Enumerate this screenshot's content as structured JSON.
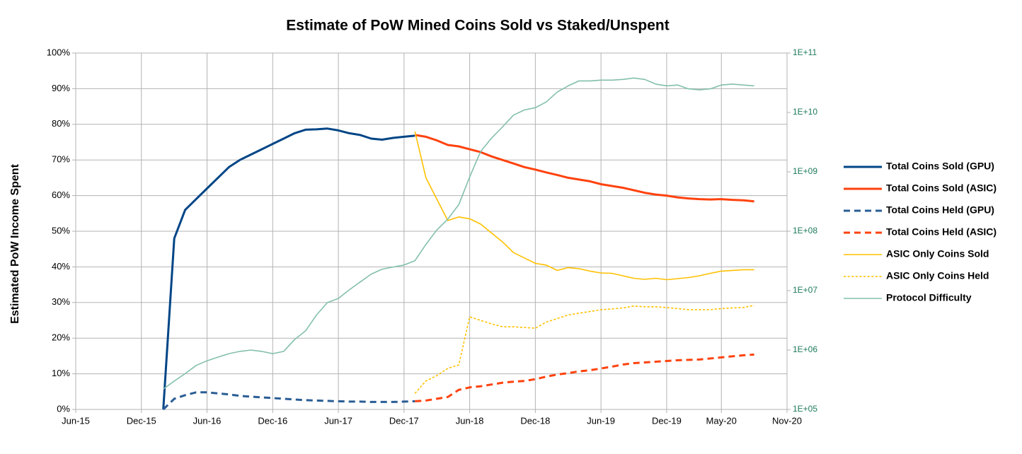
{
  "chart_data": {
    "type": "line",
    "title": "Estimate of PoW Mined Coins Sold vs Staked/Unspent",
    "y_label": "Estimated PoW Income Spent",
    "x": [
      "Feb-16",
      "Mar-16",
      "Apr-16",
      "May-16",
      "Jun-16",
      "Jul-16",
      "Aug-16",
      "Sep-16",
      "Oct-16",
      "Nov-16",
      "Dec-16",
      "Jan-17",
      "Feb-17",
      "Mar-17",
      "Apr-17",
      "May-17",
      "Jun-17",
      "Jul-17",
      "Aug-17",
      "Sep-17",
      "Oct-17",
      "Nov-17",
      "Dec-17",
      "Jan-18",
      "Feb-18",
      "Mar-18",
      "Apr-18",
      "May-18",
      "Jun-18",
      "Jul-18",
      "Aug-18",
      "Sep-18",
      "Oct-18",
      "Nov-18",
      "Dec-18",
      "Jan-19",
      "Feb-19",
      "Mar-19",
      "Apr-19",
      "May-19",
      "Jun-19",
      "Jul-19",
      "Aug-19",
      "Sep-19",
      "Oct-19",
      "Nov-19",
      "Dec-19",
      "Jan-20",
      "Feb-20",
      "Mar-20",
      "Apr-20",
      "May-20",
      "Jun-20",
      "Jul-20",
      "Aug-20"
    ],
    "xlim": [
      "Jun-15",
      "Nov-20"
    ],
    "xticks": [
      "Jun-15",
      "Dec-15",
      "Jun-16",
      "Dec-16",
      "Jun-17",
      "Dec-17",
      "Jun-18",
      "Dec-18",
      "Jun-19",
      "Dec-19",
      "May-20",
      "Nov-20"
    ],
    "ylim": [
      0,
      100
    ],
    "yticks": [
      {
        "value": 0,
        "label": "0%"
      },
      {
        "value": 10,
        "label": "10%"
      },
      {
        "value": 20,
        "label": "20%"
      },
      {
        "value": 30,
        "label": "30%"
      },
      {
        "value": 40,
        "label": "40%"
      },
      {
        "value": 50,
        "label": "50%"
      },
      {
        "value": 60,
        "label": "60%"
      },
      {
        "value": 70,
        "label": "70%"
      },
      {
        "value": 80,
        "label": "80%"
      },
      {
        "value": 90,
        "label": "90%"
      },
      {
        "value": 100,
        "label": "100%"
      }
    ],
    "y2lim": [
      100000,
      100000000000
    ],
    "y2_scale": "log",
    "y2ticks": [
      {
        "value": 100000,
        "label": "1E+05"
      },
      {
        "value": 1000000,
        "label": "1E+06"
      },
      {
        "value": 10000000,
        "label": "1E+07"
      },
      {
        "value": 100000000,
        "label": "1E+08"
      },
      {
        "value": 1000000000,
        "label": "1E+09"
      },
      {
        "value": 10000000000,
        "label": "1E+10"
      },
      {
        "value": 100000000000,
        "label": "1E+11"
      }
    ],
    "grid": true,
    "legend": "right",
    "series": [
      {
        "name": "Total Coins Sold (GPU)",
        "color": "#004586",
        "width": 3,
        "dash": "solid",
        "values": [
          0,
          48,
          56,
          59,
          62,
          65,
          68,
          70,
          71.5,
          73,
          74.5,
          76,
          77.5,
          78.5,
          78.6,
          78.8,
          78.3,
          77.5,
          77,
          76,
          75.7,
          76.2,
          76.5,
          76.8,
          null,
          null,
          null,
          null,
          null,
          null,
          null,
          null,
          null,
          null,
          null,
          null,
          null,
          null,
          null,
          null,
          null,
          null,
          null,
          null,
          null,
          null,
          null,
          null,
          null,
          null,
          null,
          null,
          null,
          null,
          null
        ]
      },
      {
        "name": "Total Coins Sold (ASIC)",
        "color": "#ff420e",
        "width": 3,
        "dash": "solid",
        "values": [
          null,
          null,
          null,
          null,
          null,
          null,
          null,
          null,
          null,
          null,
          null,
          null,
          null,
          null,
          null,
          null,
          null,
          null,
          null,
          null,
          null,
          null,
          null,
          77,
          76.5,
          75.5,
          74.2,
          73.8,
          73,
          72.2,
          71,
          70,
          69,
          68,
          67.3,
          66.5,
          65.8,
          65,
          64.5,
          64,
          63.2,
          62.7,
          62.2,
          61.5,
          60.8,
          60.3,
          60,
          59.5,
          59.2,
          59,
          58.9,
          59,
          58.8,
          58.7,
          58.4
        ]
      },
      {
        "name": "Total Coins Held (GPU)",
        "color": "#2a5d95",
        "width": 3,
        "dash": "dashed",
        "values": [
          0,
          3,
          4,
          4.8,
          4.8,
          4.5,
          4.2,
          3.8,
          3.6,
          3.4,
          3.2,
          3.0,
          2.8,
          2.6,
          2.5,
          2.4,
          2.3,
          2.2,
          2.2,
          2.1,
          2.1,
          2.1,
          2.2,
          2.3,
          null,
          null,
          null,
          null,
          null,
          null,
          null,
          null,
          null,
          null,
          null,
          null,
          null,
          null,
          null,
          null,
          null,
          null,
          null,
          null,
          null,
          null,
          null,
          null,
          null,
          null,
          null,
          null,
          null,
          null,
          null
        ]
      },
      {
        "name": "Total Coins Held (ASIC)",
        "color": "#ff420e",
        "width": 3,
        "dash": "dashed",
        "values": [
          null,
          null,
          null,
          null,
          null,
          null,
          null,
          null,
          null,
          null,
          null,
          null,
          null,
          null,
          null,
          null,
          null,
          null,
          null,
          null,
          null,
          null,
          null,
          2.3,
          2.5,
          3,
          3.5,
          5.5,
          6.2,
          6.5,
          7,
          7.5,
          7.8,
          8,
          8.5,
          9.2,
          9.8,
          10.2,
          10.7,
          11,
          11.5,
          12,
          12.6,
          13,
          13.2,
          13.4,
          13.6,
          13.8,
          13.9,
          14,
          14.3,
          14.6,
          14.9,
          15.2,
          15.4
        ]
      },
      {
        "name": "ASIC Only Coins Sold",
        "color": "#ffc000",
        "width": 1.6,
        "dash": "solid",
        "values": [
          null,
          null,
          null,
          null,
          null,
          null,
          null,
          null,
          null,
          null,
          null,
          null,
          null,
          null,
          null,
          null,
          null,
          null,
          null,
          null,
          null,
          null,
          null,
          78,
          65,
          59,
          53,
          54,
          53.5,
          52,
          49.5,
          47,
          44,
          42.5,
          41,
          40.5,
          39,
          39.8,
          39.5,
          38.8,
          38.3,
          38.2,
          37.5,
          36.8,
          36.5,
          36.8,
          36.4,
          36.7,
          37,
          37.5,
          38.2,
          38.8,
          39,
          39.2,
          39.2
        ]
      },
      {
        "name": "ASIC Only Coins Held",
        "color": "#ffc000",
        "width": 1.6,
        "dash": "dotted",
        "values": [
          null,
          null,
          null,
          null,
          null,
          null,
          null,
          null,
          null,
          null,
          null,
          null,
          null,
          null,
          null,
          null,
          null,
          null,
          null,
          null,
          null,
          null,
          null,
          4.5,
          8,
          9.5,
          11.5,
          12.5,
          26,
          25,
          24,
          23.2,
          23.2,
          23,
          22.8,
          24.5,
          25.5,
          26.5,
          27,
          27.5,
          28,
          28.2,
          28.5,
          29,
          28.8,
          28.8,
          28.6,
          28.3,
          28,
          28,
          28,
          28.3,
          28.5,
          28.6,
          29.2
        ]
      },
      {
        "name": "Protocol Difficulty",
        "color": "#83bfad",
        "width": 1.6,
        "dash": "solid",
        "axis": "y2",
        "values": [
          220000,
          300000,
          400000,
          550000,
          660000,
          760000,
          870000,
          950000,
          1000000,
          950000,
          870000,
          950000,
          1500000,
          2100000,
          3900000,
          6300000,
          7400000,
          10300000,
          14000000,
          19000000,
          23000000,
          25000000,
          27000000,
          32000000,
          60000000,
          105000000,
          160000000,
          280000000,
          820000000,
          2200000000,
          3700000000,
          5700000000,
          9000000000,
          11000000000,
          12000000000,
          15000000000,
          22000000000,
          28000000000,
          34000000000,
          34000000000,
          35000000000,
          35000000000,
          36000000000,
          38000000000,
          36000000000,
          30000000000,
          28000000000,
          29000000000,
          25000000000,
          24000000000,
          25000000000,
          29000000000,
          30000000000,
          29000000000,
          28000000000
        ]
      }
    ]
  }
}
